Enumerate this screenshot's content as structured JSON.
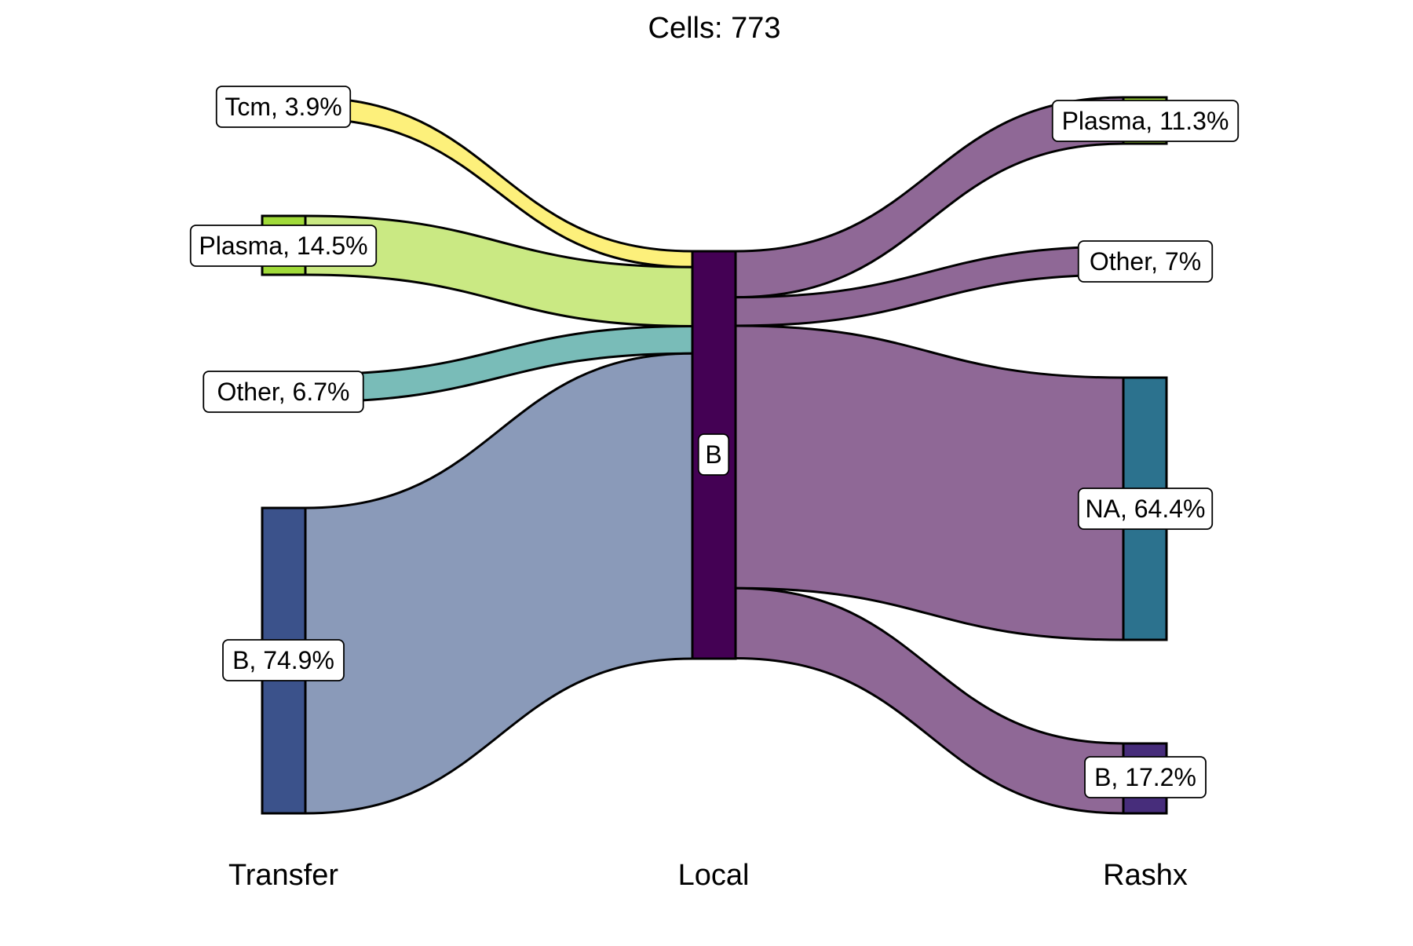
{
  "chart_data": {
    "type": "sankey",
    "title": "Cells:  773",
    "total_cells": 773,
    "axes": [
      "Transfer",
      "Local",
      "Rashx"
    ],
    "nodes": {
      "Transfer": [
        {
          "id": "t-tcm",
          "name": "Tcm",
          "label": "Tcm, 3.9%",
          "percent": 3.9,
          "color": "#fde725",
          "flow_color": "#fdf07b"
        },
        {
          "id": "t-plasma",
          "name": "Plasma",
          "label": "Plasma, 14.5%",
          "percent": 14.5,
          "color": "#a0da39",
          "flow_color": "#cae983"
        },
        {
          "id": "t-other",
          "name": "Other",
          "label": "Other, 6.7%",
          "percent": 6.7,
          "color": "#1fa187",
          "flow_color": "#79bcb8"
        },
        {
          "id": "t-b",
          "name": "B",
          "label": "B, 74.9%",
          "percent": 74.9,
          "color": "#3b528b",
          "flow_color": "#8a9ab9"
        }
      ],
      "Local": [
        {
          "id": "l-b",
          "name": "B",
          "label": "B",
          "percent": 100,
          "color": "#440154"
        }
      ],
      "Rashx": [
        {
          "id": "r-plasma",
          "name": "Plasma",
          "label": "Plasma, 11.3%",
          "percent": 11.3,
          "color": "#a0da39"
        },
        {
          "id": "r-other",
          "name": "Other",
          "label": "Other, 7%",
          "percent": 7.0,
          "color": "#1fa187"
        },
        {
          "id": "r-na",
          "name": "NA",
          "label": "NA, 64.4%",
          "percent": 64.4,
          "color": "#2c728e"
        },
        {
          "id": "r-b",
          "name": "B",
          "label": "B, 17.2%",
          "percent": 17.2,
          "color": "#472d7b"
        }
      ]
    },
    "flows_right_color": "#8f6896",
    "stroke_color": "#000000"
  }
}
